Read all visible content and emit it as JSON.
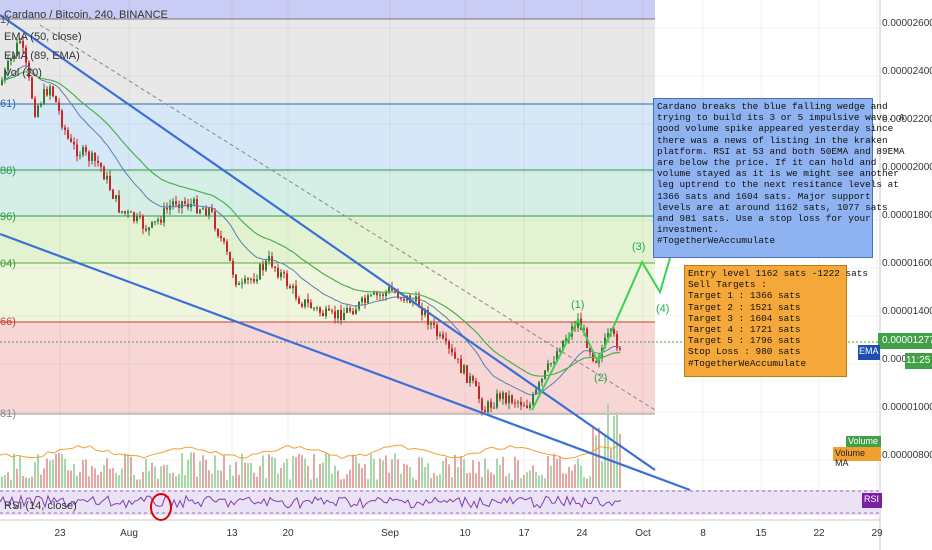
{
  "chart_data": {
    "type": "line",
    "title": "Cardano / Bitcoin, 240, BINANCE",
    "indicators": [
      "EMA (50, close)",
      "EMA (89, EMA)",
      "Vol (20)"
    ],
    "rsi_label": "RSI (14, close)",
    "y_axis": {
      "ticks": [
        "0.00002600",
        "0.00002400",
        "0.00002200",
        "0.00002000",
        "0.00001800",
        "0.00001600",
        "0.00001400",
        "0.00001200",
        "0.00001000",
        "0.00000800"
      ]
    },
    "x_axis": {
      "ticks": [
        "23",
        "Aug",
        "13",
        "20",
        "Sep",
        "10",
        "17",
        "24",
        "Oct",
        "8",
        "15",
        "22",
        "29"
      ]
    },
    "current_price": "0.00001277",
    "countdown": "11:25",
    "price_tag_label": "EMA",
    "volume_label": "Volume",
    "volume_ma_label": "Volume MA",
    "rsi_tag": "RSI",
    "fib_left_labels": [
      "1)",
      "61)",
      "88)",
      "96)",
      "04)",
      "66)",
      "81)"
    ],
    "wave_labels": [
      "(1)",
      "(2)",
      "(3)",
      "(4)"
    ],
    "colors": {
      "wedge": "#3a6fd8",
      "ema50": "#5a7fb0",
      "ema89": "#4caf50",
      "candle_up": "#2e7d32",
      "candle_down": "#c62828",
      "projection": "#39d353",
      "note_blue": "#8fb2f0",
      "note_orange": "#f4a83a"
    },
    "analysis_note": "Cardano breaks the blue falling wedge and\ntrying to build its 3 or 5 impulsive wave. A\ngood volume spike appeared yesterday since\nthere was a news of listing in the kraken\nplatform. RSI at 53 and both 50EMA and 89EMA\nare below the price. If it can hold and\nvolume stayed as it is we might see another\nleg uptrend to the next resitance levels at\n1366 sats and 1604 sats. Major support\nlevels are at around 1162 sats, 1077 sats\nand 981 sats. Use a stop loss for your\ninvestment.\n#TogetherWeAccumulate",
    "targets_note": "Entry level 1162 sats -1222 sats\nSell Targets :\nTarget 1 : 1366 sats\nTarget 2 : 1521 sats\nTarget 3 : 1604 sats\nTarget 4 : 1721 sats\nTarget 5 : 1796 sats\nStop Loss : 980 sats\n#TogetherWeAccumulate"
  }
}
